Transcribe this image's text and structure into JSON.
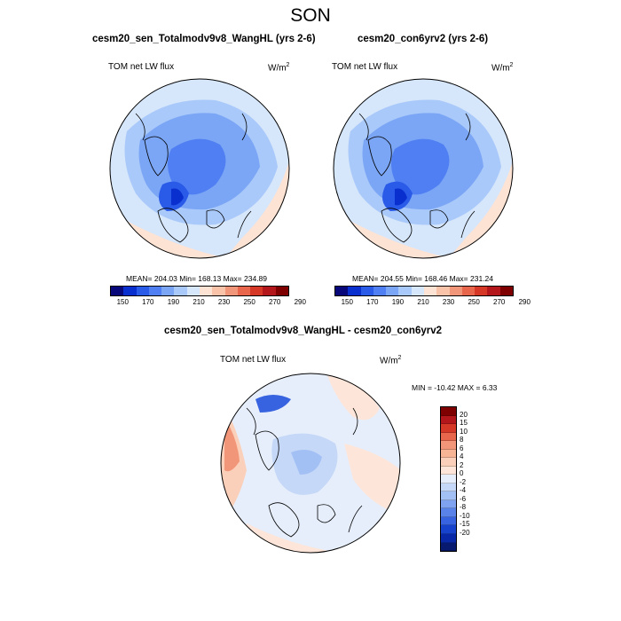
{
  "season": "SON",
  "panels": [
    {
      "title": "cesm20_sen_Totalmodv9v8_WangHL (yrs 2-6)",
      "variable": "TOM net LW flux",
      "units": "W/m",
      "units_sup": "2",
      "stats": "MEAN= 204.03  Min= 168.13  Max= 234.89"
    },
    {
      "title": "cesm20_con6yrv2 (yrs 2-6)",
      "variable": "TOM net LW flux",
      "units": "W/m",
      "units_sup": "2",
      "stats": "MEAN= 204.55  Min= 168.46  Max= 231.24"
    },
    {
      "title": "cesm20_sen_Totalmodv9v8_WangHL - cesm20_con6yrv2",
      "variable": "TOM net LW flux",
      "units": "W/m",
      "units_sup": "2",
      "stats": "MIN = -10.42 MAX =   6.33"
    }
  ],
  "abs_colorbar": {
    "colors": [
      "#08087a",
      "#0a2fcf",
      "#2a5ae8",
      "#4f7ff2",
      "#7ba6f5",
      "#a9c9fa",
      "#d6e6fb",
      "#fde3d4",
      "#f8c3a8",
      "#f2967a",
      "#e8664c",
      "#d63828",
      "#b3171b",
      "#7f0000"
    ],
    "ticks": [
      "150",
      "170",
      "190",
      "210",
      "230",
      "250",
      "270",
      "290"
    ]
  },
  "diff_colorbar": {
    "colors": [
      "#7f0000",
      "#b3171b",
      "#d63828",
      "#e8664c",
      "#f2967a",
      "#f8b596",
      "#fbd0ba",
      "#fde6d9",
      "#e6eefb",
      "#c5d8f8",
      "#a3c0f5",
      "#7fa3f0",
      "#5a83ea",
      "#3763e0",
      "#1743cc",
      "#0828a8",
      "#081a70"
    ],
    "ticks": [
      "20",
      "15",
      "10",
      "8",
      "6",
      "4",
      "2",
      "0",
      "-2",
      "-4",
      "-6",
      "-8",
      "-10",
      "-15",
      "-20"
    ]
  }
}
